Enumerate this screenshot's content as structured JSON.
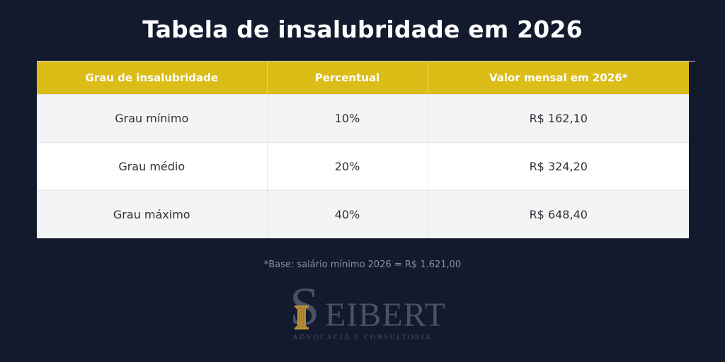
{
  "page": {
    "title": "Tabela de insalubridade em 2026",
    "footnote": "*Base: salário mínimo 2026 = R$ 1.621,00",
    "colors": {
      "background": "#131a2e",
      "header": "#dcbc17",
      "row_alt": "#f3f4f6",
      "row": "#ffffff",
      "logo_gold": "#b8923a"
    }
  },
  "table": {
    "headers": [
      "Grau de insalubridade",
      "Percentual",
      "Valor mensal em 2026*"
    ],
    "rows": [
      [
        "Grau mínimo",
        "10%",
        "R$ 162,10"
      ],
      [
        "Grau médio",
        "20%",
        "R$ 324,20"
      ],
      [
        "Grau máximo",
        "40%",
        "R$ 648,40"
      ]
    ]
  },
  "logo": {
    "initial": "S",
    "rest": "EIBERT",
    "subtitle": "ADVOCACIA E CONSULTORIA",
    "icon": "column-icon"
  }
}
